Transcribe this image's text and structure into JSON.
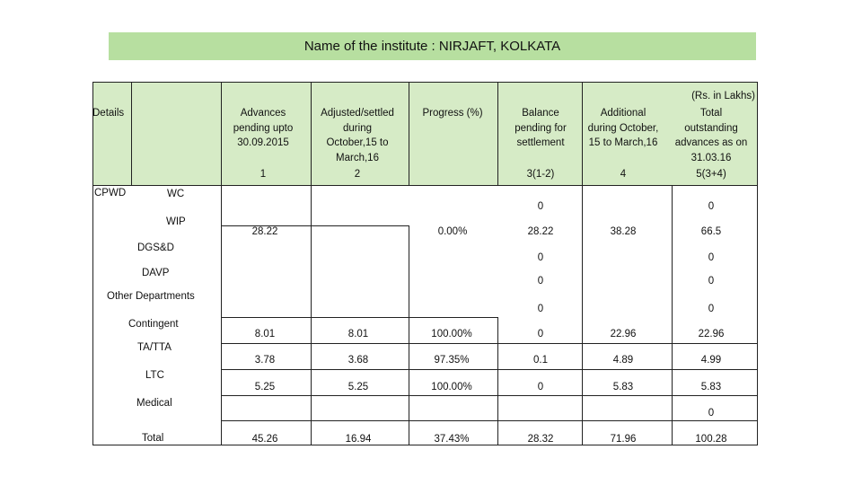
{
  "title": "Name of the institute : NIRJAFT, KOLKATA",
  "units_note": "(Rs. in Lakhs)",
  "headers": {
    "details": "Details",
    "advances": [
      "Advances",
      "pending upto",
      "30.09.2015"
    ],
    "adjusted": [
      "Adjusted/settled",
      "during",
      "October,15 to",
      "March,16"
    ],
    "progress": "Progress (%)",
    "balance": [
      "Balance",
      "pending for",
      "settlement"
    ],
    "additional": [
      "Additional",
      "during October,",
      "15 to March,16"
    ],
    "total": [
      "Total",
      "outstanding",
      "advances as on",
      "31.03.16"
    ],
    "col_numbers": [
      "1",
      "2",
      "3(1-2)",
      "4",
      "5(3+4)"
    ]
  },
  "labels": {
    "cpwd": "CPWD",
    "wc": "WC",
    "wip": "WIP",
    "dgsd": "DGS&D",
    "davp": "DAVP",
    "other": "Other Departments",
    "contingent": "Contingent",
    "tatta": "TA/TTA",
    "ltc": "LTC",
    "medical": "Medical",
    "total": "Total"
  },
  "rows": {
    "wc": {
      "balance": "0",
      "total": "0"
    },
    "wip": {
      "advances": "28.22",
      "progress": "0.00%",
      "balance": "28.22",
      "additional": "38.28",
      "total": "66.5"
    },
    "dgsd": {
      "balance": "0",
      "total": "0"
    },
    "davp": {
      "balance": "0",
      "total": "0"
    },
    "other": {
      "balance": "0",
      "total": "0"
    },
    "contingent": {
      "advances": "8.01",
      "adjusted": "8.01",
      "progress": "100.00%",
      "balance": "0",
      "additional": "22.96",
      "total": "22.96"
    },
    "tatta": {
      "advances": "3.78",
      "adjusted": "3.68",
      "progress": "97.35%",
      "balance": "0.1",
      "additional": "4.89",
      "total": "4.99"
    },
    "ltc": {
      "advances": "5.25",
      "adjusted": "5.25",
      "progress": "100.00%",
      "balance": "0",
      "additional": "5.83",
      "total": "5.83"
    },
    "medical": {
      "total": "0"
    },
    "total": {
      "advances": "45.26",
      "adjusted": "16.94",
      "progress": "37.43%",
      "balance": "28.32",
      "additional": "71.96",
      "total": "100.28"
    }
  }
}
